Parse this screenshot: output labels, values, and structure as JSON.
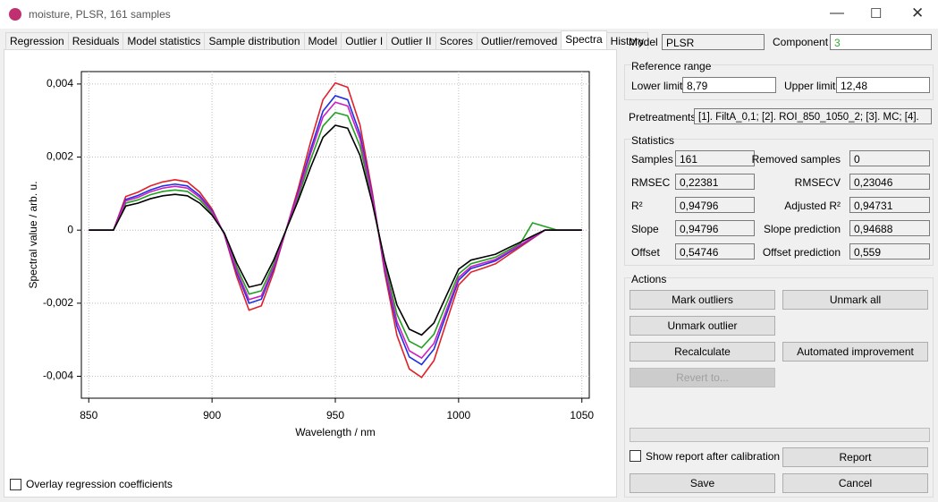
{
  "window": {
    "title": "moisture, PLSR, 161 samples"
  },
  "tabs": [
    "Regression",
    "Residuals",
    "Model statistics",
    "Sample distribution",
    "Model",
    "Outlier I",
    "Outlier II",
    "Scores",
    "Outlier/removed",
    "Spectra",
    "History"
  ],
  "model": {
    "label": "Model",
    "value": "PLSR",
    "component_label": "Component",
    "component_value": "3"
  },
  "reference_range": {
    "title": "Reference range",
    "lower_label": "Lower limit",
    "lower_value": "8,79",
    "upper_label": "Upper limit",
    "upper_value": "12,48"
  },
  "pretreatments": {
    "label": "Pretreatments",
    "value": "[1]. FiltA_0,1; [2]. ROI_850_1050_2; [3]. MC; [4]."
  },
  "statistics": {
    "title": "Statistics",
    "rows": [
      [
        "Samples",
        "161",
        "Removed samples",
        "0"
      ],
      [
        "RMSEC",
        "0,22381",
        "RMSECV",
        "0,23046"
      ],
      [
        "R²",
        "0,94796",
        "Adjusted R²",
        "0,94731"
      ],
      [
        "Slope",
        "0,94796",
        "Slope prediction",
        "0,94688"
      ],
      [
        "Offset",
        "0,54746",
        "Offset prediction",
        "0,559"
      ]
    ]
  },
  "actions": {
    "title": "Actions",
    "mark_outliers": "Mark outliers",
    "unmark_all": "Unmark all",
    "unmark_outlier": "Unmark outlier",
    "recalculate": "Recalculate",
    "automated_improvement": "Automated improvement",
    "revert_to": "Revert to...",
    "show_report": "Show report after calibration",
    "report": "Report",
    "save": "Save",
    "cancel": "Cancel"
  },
  "overlay_checkbox": "Overlay regression coefficients",
  "chart_data": {
    "type": "line",
    "xlabel": "Wavelength / nm",
    "ylabel": "Spectral value / arb. u.",
    "x": [
      850,
      855,
      860,
      865,
      870,
      875,
      880,
      885,
      890,
      895,
      900,
      905,
      910,
      915,
      920,
      925,
      930,
      935,
      940,
      945,
      950,
      955,
      960,
      965,
      970,
      975,
      980,
      985,
      990,
      995,
      1000,
      1005,
      1010,
      1015,
      1020,
      1025,
      1030,
      1035,
      1040,
      1045,
      1050
    ],
    "series": [
      {
        "color": "#e8e8ff",
        "values": [
          0,
          0,
          0,
          0.0008,
          0.0009,
          0.00105,
          0.00115,
          0.0012,
          0.00115,
          0.0009,
          0.0005,
          -0.0001,
          -0.0011,
          -0.0019,
          -0.0018,
          -0.001,
          0,
          0.001,
          0.0021,
          0.0031,
          0.0035,
          0.0034,
          0.0025,
          0.0009,
          -0.001,
          -0.0025,
          -0.0033,
          -0.0035,
          -0.0031,
          -0.0022,
          -0.0013,
          -0.001,
          -0.0009,
          -0.0008,
          -0.0006,
          -0.0004,
          -0.0002,
          0,
          0,
          0,
          0
        ]
      },
      {
        "color": "#e0202a",
        "values": [
          0,
          0,
          0,
          0.00092,
          0.00104,
          0.00121,
          0.00132,
          0.00138,
          0.00132,
          0.00104,
          0.00058,
          -0.00012,
          -0.00127,
          -0.00219,
          -0.00207,
          -0.00115,
          0,
          0.00115,
          0.00242,
          0.00357,
          0.00403,
          0.00391,
          0.00288,
          0.00104,
          -0.00115,
          -0.00288,
          -0.0038,
          -0.00403,
          -0.00357,
          -0.00253,
          -0.0015,
          -0.00115,
          -0.00104,
          -0.00092,
          -0.00069,
          -0.00046,
          -0.00023,
          0,
          0,
          0,
          0
        ]
      },
      {
        "color": "#2030e0",
        "values": [
          0,
          0,
          0,
          0.00084,
          0.00095,
          0.0011,
          0.00121,
          0.00126,
          0.00121,
          0.00095,
          0.00053,
          -0.00011,
          -0.00116,
          -0.002,
          -0.00189,
          -0.00105,
          0,
          0.00105,
          0.00221,
          0.00326,
          0.00368,
          0.00357,
          0.00263,
          0.00095,
          -0.00105,
          -0.00263,
          -0.00347,
          -0.00368,
          -0.00326,
          -0.00231,
          -0.00137,
          -0.00105,
          -0.00095,
          -0.00084,
          -0.00063,
          -0.00042,
          -0.00021,
          0,
          0,
          0,
          0
        ]
      },
      {
        "color": "#20a020",
        "values": [
          0,
          0,
          0,
          0.00074,
          0.00083,
          0.00097,
          0.00106,
          0.0011,
          0.00106,
          0.00083,
          0.00046,
          -9e-05,
          -0.00101,
          -0.00175,
          -0.00166,
          -0.00092,
          0,
          0.00092,
          0.00193,
          0.00285,
          0.00322,
          0.00313,
          0.0023,
          0.00083,
          -0.00092,
          -0.0023,
          -0.00304,
          -0.00322,
          -0.00285,
          -0.00202,
          -0.0012,
          -0.00092,
          -0.00083,
          -0.00074,
          -0.00055,
          -0.00037,
          0.0002,
          0.0001,
          0,
          0,
          0
        ]
      },
      {
        "color": "#d020c0",
        "values": [
          0,
          0,
          0,
          0.0008,
          0.0009,
          0.00105,
          0.00115,
          0.0012,
          0.00115,
          0.0009,
          0.0005,
          -0.0001,
          -0.0011,
          -0.0019,
          -0.0018,
          -0.001,
          0,
          0.001,
          0.0021,
          0.0031,
          0.0035,
          0.0034,
          0.0025,
          0.0009,
          -0.001,
          -0.0025,
          -0.0033,
          -0.0035,
          -0.0031,
          -0.0022,
          -0.0013,
          -0.001,
          -0.0009,
          -0.0008,
          -0.0006,
          -0.0004,
          -0.0002,
          0,
          0,
          0,
          0
        ]
      },
      {
        "color": "#000000",
        "values": [
          0,
          0,
          0,
          0.00066,
          0.00074,
          0.00086,
          0.00094,
          0.00098,
          0.00094,
          0.00074,
          0.00041,
          -8e-05,
          -0.0009,
          -0.00156,
          -0.00148,
          -0.00082,
          0,
          0.00082,
          0.00172,
          0.00254,
          0.00287,
          0.00279,
          0.00205,
          0.00074,
          -0.00082,
          -0.00205,
          -0.00271,
          -0.00287,
          -0.00254,
          -0.0018,
          -0.00107,
          -0.00082,
          -0.00074,
          -0.00066,
          -0.00049,
          -0.00033,
          -0.00016,
          0,
          0,
          0,
          0
        ]
      }
    ],
    "xlim": [
      847,
      1053
    ],
    "ylim": [
      -0.0046,
      0.00434
    ],
    "xticks": [
      850,
      900,
      950,
      1000,
      1050
    ],
    "yticks": [
      {
        "value": 0.004,
        "label": "0,004"
      },
      {
        "value": 0.002,
        "label": "0,002"
      },
      0,
      {
        "value": -0.002,
        "label": "-0,002"
      },
      {
        "value": -0.004,
        "label": "-0,004"
      }
    ],
    "grid": true
  }
}
